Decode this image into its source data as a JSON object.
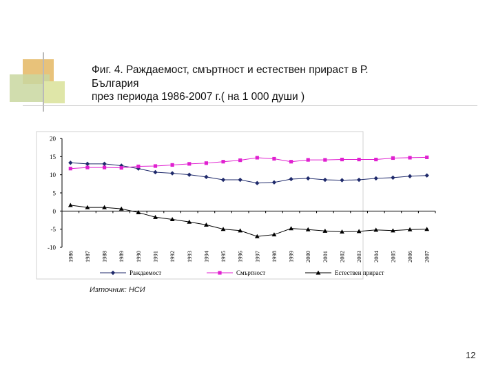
{
  "slide": {
    "title_lines": [
      "Фиг. 4. Раждаемост, смъртност и естествен прираст в Р.",
      "България",
      "през периода 1986-2007 г.( на 1 000 души )"
    ],
    "source": "Източник: НСИ",
    "page_number": "12",
    "colors": {
      "deco_gold": "#e8c27a",
      "deco_green": "#c9d7a0",
      "deco_lime": "#dfe6a8",
      "deco_line": "#b9b9b9"
    }
  },
  "chart_data": {
    "type": "line",
    "categories": [
      "1986",
      "1987",
      "1988",
      "1989",
      "1990",
      "1991",
      "1992",
      "1993",
      "1994",
      "1995",
      "1996",
      "1997",
      "1998",
      "1999",
      "2000",
      "2001",
      "2002",
      "2003",
      "2004",
      "2005",
      "2006",
      "2007"
    ],
    "ylim": [
      -10,
      20
    ],
    "yticks": [
      "20",
      "15",
      "10",
      "5",
      "0",
      "-5",
      "-10"
    ],
    "series": [
      {
        "name": "Раждаемост",
        "color": "#1f2a6b",
        "marker": "diamond",
        "values": [
          13.3,
          13.0,
          13.0,
          12.5,
          11.7,
          10.7,
          10.4,
          10.0,
          9.4,
          8.6,
          8.6,
          7.7,
          7.9,
          8.8,
          9.0,
          8.6,
          8.5,
          8.6,
          9.0,
          9.2,
          9.6,
          9.8
        ]
      },
      {
        "name": "Смъртност",
        "color": "#e020d0",
        "marker": "square",
        "values": [
          11.7,
          12.0,
          12.0,
          11.9,
          12.3,
          12.4,
          12.7,
          13.0,
          13.2,
          13.6,
          14.0,
          14.7,
          14.4,
          13.6,
          14.1,
          14.1,
          14.2,
          14.2,
          14.2,
          14.6,
          14.7,
          14.8
        ]
      },
      {
        "name": "Естествен прираст",
        "color": "#000000",
        "marker": "triangle",
        "values": [
          1.6,
          1.0,
          1.0,
          0.6,
          -0.4,
          -1.7,
          -2.3,
          -3.0,
          -3.8,
          -5.0,
          -5.4,
          -7.0,
          -6.5,
          -4.8,
          -5.1,
          -5.5,
          -5.7,
          -5.6,
          -5.2,
          -5.4,
          -5.1,
          -5.0
        ]
      }
    ],
    "legend_position": "bottom",
    "grid": false
  }
}
